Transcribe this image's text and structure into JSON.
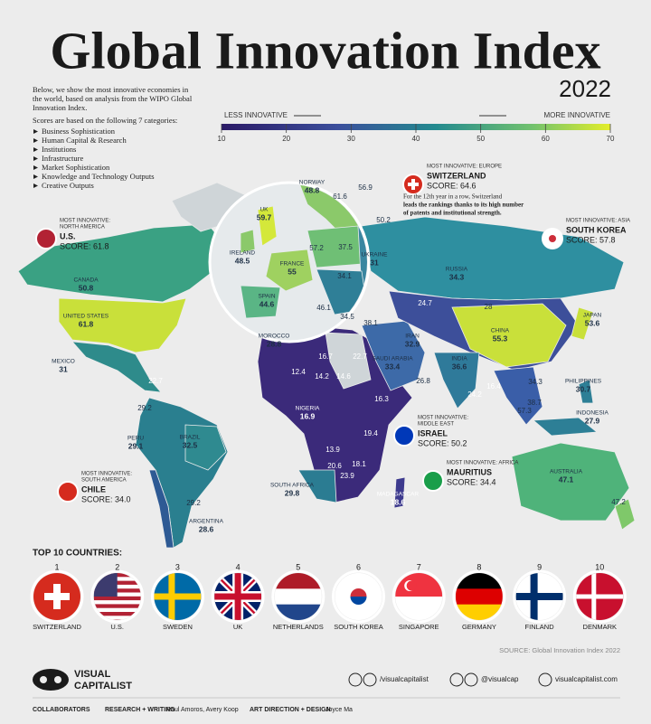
{
  "header": {
    "title": "Global Innovation Index",
    "year": "2022",
    "intro": [
      "Below, we show the most innovative economies in",
      "the world, based on analysis from the WIPO Global",
      "Innovation Index."
    ],
    "categories_heading": "Scores are based on the following 7 categories:",
    "categories": [
      "Business Sophistication",
      "Human Capital & Research",
      "Institutions",
      "Infrastructure",
      "Market Sophistication",
      "Knowledge and Technology Outputs",
      "Creative Outputs"
    ]
  },
  "legend": {
    "less": "LESS INNOVATIVE",
    "more": "MORE INNOVATIVE",
    "ticks": [
      10,
      20,
      30,
      40,
      50,
      60,
      70
    ]
  },
  "callouts": [
    {
      "heading": [
        "MOST INNOVATIVE:",
        "NORTH AMERICA"
      ],
      "country": "U.S.",
      "score": "SCORE: 61.8"
    },
    {
      "heading": [
        "MOST INNOVATIVE: EUROPE"
      ],
      "country": "SWITZERLAND",
      "score": "SCORE: 64.6"
    },
    {
      "heading": [
        "MOST INNOVATIVE: ASIA"
      ],
      "country": "SOUTH KOREA",
      "score": "SCORE: 57.8"
    },
    {
      "heading": [
        "MOST INNOVATIVE:",
        "MIDDLE EAST"
      ],
      "country": "ISRAEL",
      "score": "SCORE: 50.2"
    },
    {
      "heading": [
        "MOST INNOVATIVE: AFRICA"
      ],
      "country": "MAURITIUS",
      "score": "SCORE: 34.4"
    },
    {
      "heading": [
        "MOST INNOVATIVE:",
        "SOUTH AMERICA"
      ],
      "country": "CHILE",
      "score": "SCORE: 34.0"
    }
  ],
  "switzerland_note": [
    "For the 12th year in a row, Switzerland",
    "leads the rankings thanks to its high number",
    "of patents and institutional strength."
  ],
  "map_labels": [
    {
      "name": "NORWAY",
      "value": 48.8
    },
    {
      "value": 61.6
    },
    {
      "value": 56.9
    },
    {
      "name": "UK",
      "value": 59.7
    },
    {
      "value": 50.2
    },
    {
      "name": "IRELAND",
      "value": 48.5
    },
    {
      "value": 57.2
    },
    {
      "value": 37.5
    },
    {
      "name": "UKRAINE",
      "value": 31
    },
    {
      "name": "FRANCE",
      "value": 55
    },
    {
      "value": 34.1
    },
    {
      "name": "SPAIN",
      "value": 44.6
    },
    {
      "value": 46.1
    },
    {
      "value": 34.5
    },
    {
      "value": 38.1
    },
    {
      "name": "CANADA",
      "value": 50.8
    },
    {
      "name": "RUSSIA",
      "value": 34.3
    },
    {
      "value": 24.7
    },
    {
      "value": 28
    },
    {
      "name": "JAPAN",
      "value": 53.6
    },
    {
      "name": "CHINA",
      "value": 55.3
    },
    {
      "name": "UNITED STATES",
      "value": 61.8
    },
    {
      "name": "MOROCCO",
      "value": 28.8
    },
    {
      "value": 16.7
    },
    {
      "value": 22.7
    },
    {
      "name": "IRAN",
      "value": 32.9
    },
    {
      "name": "SAUDI ARABIA",
      "value": 33.4
    },
    {
      "name": "INDIA",
      "value": 36.6
    },
    {
      "value": 26.8
    },
    {
      "value": 12.4
    },
    {
      "value": 14.2
    },
    {
      "value": 14.6
    },
    {
      "name": "MEXICO",
      "value": 31
    },
    {
      "value": 22.7
    },
    {
      "value": 16.3
    },
    {
      "value": 24.2
    },
    {
      "value": 16.4
    },
    {
      "value": 34.3
    },
    {
      "name": "PHILIPPINES",
      "value": 30.7
    },
    {
      "name": "INDONESIA",
      "value": 27.9
    },
    {
      "value": 38.7
    },
    {
      "value": 57.3
    },
    {
      "name": "NIGERIA",
      "value": 16.9
    },
    {
      "value": 29.2
    },
    {
      "value": 19.4
    },
    {
      "name": "PERU",
      "value": 29.1
    },
    {
      "name": "BRAZIL",
      "value": 32.5
    },
    {
      "value": 13.9
    },
    {
      "value": 20.6
    },
    {
      "value": 18.1
    },
    {
      "value": 23.9
    },
    {
      "name": "SOUTH AFRICA",
      "value": 29.8
    },
    {
      "name": "MADAGASCAR",
      "value": 18.6
    },
    {
      "name": "AUSTRALIA",
      "value": 47.1
    },
    {
      "value": 29.2
    },
    {
      "name": "ARGENTINA",
      "value": 28.6
    },
    {
      "value": 47.2
    }
  ],
  "top10": {
    "heading": "TOP 10 COUNTRIES:",
    "items": [
      {
        "rank": 1,
        "name": "SWITZERLAND"
      },
      {
        "rank": 2,
        "name": "U.S."
      },
      {
        "rank": 3,
        "name": "SWEDEN"
      },
      {
        "rank": 4,
        "name": "UK"
      },
      {
        "rank": 5,
        "name": "NETHERLANDS"
      },
      {
        "rank": 6,
        "name": "SOUTH KOREA"
      },
      {
        "rank": 7,
        "name": "SINGAPORE"
      },
      {
        "rank": 8,
        "name": "GERMANY"
      },
      {
        "rank": 9,
        "name": "FINLAND"
      },
      {
        "rank": 10,
        "name": "DENMARK"
      }
    ]
  },
  "footer": {
    "source": "SOURCE: Global Innovation Index 2022",
    "brand": [
      "VISUAL",
      "CAPITALIST"
    ],
    "social": [
      "/visualcapitalist",
      "@visualcap",
      "visualcapitalist.com"
    ],
    "collaborators": "COLLABORATORS",
    "research_label": "RESEARCH + WRITING",
    "research_names": "Raul Amoros, Avery Koop",
    "design_label": "ART DIRECTION + DESIGN",
    "design_names": "Joyce Ma"
  }
}
